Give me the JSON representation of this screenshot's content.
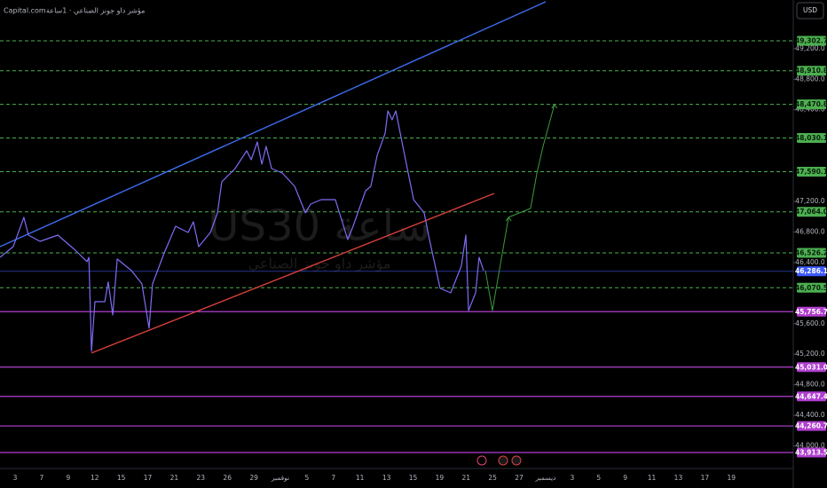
{
  "chart_data": {
    "type": "line",
    "source": "Capital.com",
    "title": "مؤشر داو جونز الصناعي · 1ساعة",
    "watermark": "US30 ساعة",
    "watermark_subtitle": "مؤشر داو جونز الصناعي",
    "currency": "USD",
    "categories": [
      "3",
      "7",
      "9",
      "12",
      "15",
      "17",
      "21",
      "23",
      "26",
      "29",
      "نوفمبر",
      "5",
      "7",
      "11",
      "13",
      "15",
      "19",
      "21",
      "25",
      "27",
      "ديسمبر",
      "3",
      "5",
      "9",
      "11",
      "13",
      "17",
      "19"
    ],
    "xlim": [
      -0.57,
      29.3
    ],
    "ylim": [
      43704,
      49837
    ],
    "yticks": [
      {
        "value": 49200,
        "label": "49,200.0"
      },
      {
        "value": 48800,
        "label": "48,800.0"
      },
      {
        "value": 48400,
        "label": "48,400.0"
      },
      {
        "value": 47200,
        "label": "47,200.0"
      },
      {
        "value": 46800,
        "label": "46,800.0"
      },
      {
        "value": 46400,
        "label": "46,400.0"
      },
      {
        "value": 45600,
        "label": "45,600.0"
      },
      {
        "value": 45200,
        "label": "45,200.0"
      },
      {
        "value": 44800,
        "label": "44,800.0"
      },
      {
        "value": 44400,
        "label": "44,400.0"
      },
      {
        "value": 44000,
        "label": "44,000.0"
      }
    ],
    "series": [
      {
        "color": "#7e6cf5",
        "x": [
          -0.57,
          -0.07,
          0.33,
          0.5,
          0.94,
          1.61,
          2.27,
          2.71,
          2.78,
          2.88,
          3.01,
          3.38,
          3.51,
          3.68,
          3.85,
          4.38,
          4.78,
          5.05,
          5.18,
          5.62,
          6.05,
          6.52,
          6.72,
          6.92,
          7.36,
          7.63,
          7.79,
          8.29,
          8.73,
          8.9,
          9.13,
          9.3,
          9.46,
          9.67,
          10.07,
          10.54,
          10.94,
          11.14,
          11.54,
          12.07,
          12.54,
          12.74,
          13.21,
          13.41,
          13.65,
          13.95,
          14.05,
          14.21,
          14.35,
          14.65,
          15.02,
          15.42,
          15.62,
          16.02,
          16.42,
          16.82,
          16.99,
          17.09,
          17.36,
          17.49,
          17.66
        ],
        "values": [
          46469,
          46608,
          46992,
          46759,
          46678,
          46759,
          46562,
          46411,
          46469,
          45238,
          45888,
          45888,
          46144,
          45714,
          46446,
          46295,
          46121,
          45540,
          46121,
          46527,
          46875,
          46794,
          46933,
          46608,
          46794,
          47050,
          47456,
          47630,
          47863,
          47746,
          47979,
          47688,
          47921,
          47630,
          47572,
          47398,
          47050,
          47166,
          47224,
          47224,
          46701,
          46875,
          47340,
          47398,
          47805,
          48095,
          48385,
          48269,
          48385,
          47863,
          47224,
          47050,
          46701,
          46062,
          46004,
          46353,
          46759,
          45772,
          46004,
          46469,
          46295
        ]
      }
    ],
    "projection": {
      "color": "#3c9a3c",
      "x": [
        17.73,
        17.99,
        18.6,
        19.43,
        19.67,
        19.9,
        20.33
      ],
      "values": [
        46295,
        45772,
        46992,
        47108,
        47572,
        47921,
        48467
      ]
    },
    "trendlines": [
      {
        "color": "#3d6cf0",
        "x": [
          -0.57,
          20.0
        ],
        "values": [
          46608,
          49814
        ]
      },
      {
        "color": "#d6403a",
        "x": [
          2.88,
          18.06
        ],
        "values": [
          45215,
          47305
        ]
      }
    ],
    "levels": [
      {
        "value": 49302.7,
        "label": "49,302.7",
        "color": "#4caf50",
        "dashed": true
      },
      {
        "value": 48910.8,
        "label": "48,910.8",
        "color": "#4caf50",
        "dashed": true
      },
      {
        "value": 48470.8,
        "label": "48,470.8",
        "color": "#4caf50",
        "dashed": true
      },
      {
        "value": 48030.1,
        "label": "48,030.1",
        "color": "#4caf50",
        "dashed": true
      },
      {
        "value": 47590.1,
        "label": "47,590.1",
        "color": "#4caf50",
        "dashed": true
      },
      {
        "value": 47064.0,
        "label": "47,064.0",
        "color": "#4caf50",
        "dashed": true
      },
      {
        "value": 46526.2,
        "label": "46,526.2",
        "color": "#4caf50",
        "dashed": true
      },
      {
        "value": 46286.1,
        "label": "46,286.1",
        "color": "#3d5afe",
        "dashed": false
      },
      {
        "value": 46070.5,
        "label": "46,070.5",
        "color": "#4caf50",
        "dashed": true
      },
      {
        "value": 45756.7,
        "label": "45,756.7",
        "color": "#b03fcf",
        "dashed": false
      },
      {
        "value": 45031.0,
        "label": "45,031.0",
        "color": "#b03fcf",
        "dashed": false
      },
      {
        "value": 44647.4,
        "label": "44,647.4",
        "color": "#b03fcf",
        "dashed": false
      },
      {
        "value": 44260.7,
        "label": "44,260.7",
        "color": "#b03fcf",
        "dashed": false
      },
      {
        "value": 43913.5,
        "label": "43,913.5",
        "color": "#b03fcf",
        "dashed": false
      }
    ]
  }
}
